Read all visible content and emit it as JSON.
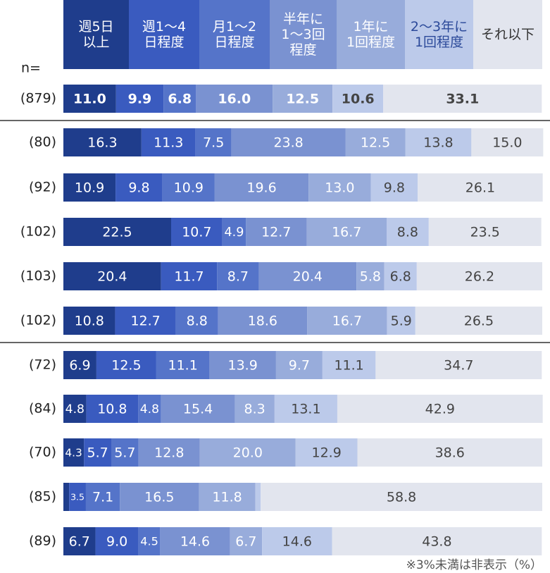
{
  "chart_data": {
    "type": "stacked_bar_horizontal",
    "n_label": "n=",
    "note": "※3%未満は非表示（%）",
    "categories": [
      "(879)",
      "(80)",
      "(92)",
      "(102)",
      "(103)",
      "(102)",
      "(72)",
      "(84)",
      "(70)",
      "(85)",
      "(89)"
    ],
    "xlim": [
      0,
      100
    ],
    "series": [
      {
        "name": "週5日\n以上",
        "color": "#1f3d8c",
        "values": [
          11.0,
          16.3,
          10.9,
          22.5,
          20.4,
          10.8,
          6.9,
          4.8,
          4.3,
          1.2,
          6.7
        ],
        "value_labels": [
          "11.0",
          "16.3",
          "10.9",
          "22.5",
          "20.4",
          "10.8",
          "6.9",
          "4.8",
          "4.3",
          null,
          "6.7"
        ]
      },
      {
        "name": "週1～4\n日程度",
        "color": "#3a5bbf",
        "values": [
          9.9,
          11.3,
          9.8,
          10.7,
          11.7,
          12.7,
          12.5,
          10.8,
          5.7,
          3.5,
          9.0
        ],
        "value_labels": [
          "9.9",
          "11.3",
          "9.8",
          "10.7",
          "11.7",
          "12.7",
          "12.5",
          "10.8",
          "5.7",
          "3.5",
          "9.0"
        ]
      },
      {
        "name": "月1～2\n日程度",
        "color": "#5574c9",
        "values": [
          6.8,
          7.5,
          10.9,
          4.9,
          8.7,
          8.8,
          11.1,
          4.8,
          5.7,
          7.1,
          4.5
        ],
        "value_labels": [
          "6.8",
          "7.5",
          "10.9",
          "4.9",
          "8.7",
          "8.8",
          "11.1",
          "4.8",
          "5.7",
          "7.1",
          "4.5"
        ]
      },
      {
        "name": "半年に\n1～3回\n程度",
        "color": "#7a92d1",
        "values": [
          16.0,
          23.8,
          19.6,
          12.7,
          20.4,
          18.6,
          13.9,
          15.4,
          12.8,
          16.5,
          14.6
        ],
        "value_labels": [
          "16.0",
          "23.8",
          "19.6",
          "12.7",
          "20.4",
          "18.6",
          "13.9",
          "15.4",
          "12.8",
          "16.5",
          "14.6"
        ]
      },
      {
        "name": "1年に\n1回程度",
        "color": "#98acdb",
        "values": [
          12.5,
          12.5,
          13.0,
          16.7,
          5.8,
          16.7,
          9.7,
          8.3,
          20.0,
          11.8,
          6.7
        ],
        "value_labels": [
          "12.5",
          "12.5",
          "13.0",
          "16.7",
          "5.8",
          "16.7",
          "9.7",
          "8.3",
          "20.0",
          "11.8",
          "6.7"
        ]
      },
      {
        "name": "2～3年に\n1回程度",
        "color": "#bccaea",
        "values": [
          10.6,
          13.8,
          9.8,
          8.8,
          6.8,
          5.9,
          11.1,
          13.1,
          12.9,
          1.1,
          14.6
        ],
        "value_labels": [
          "10.6",
          "13.8",
          "9.8",
          "8.8",
          "6.8",
          "5.9",
          "11.1",
          "13.1",
          "12.9",
          null,
          "14.6"
        ]
      },
      {
        "name": "それ以下",
        "color": "#e2e5ee",
        "values": [
          33.1,
          15.0,
          26.1,
          23.5,
          26.2,
          26.5,
          34.7,
          42.9,
          38.6,
          58.8,
          43.8
        ],
        "value_labels": [
          "33.1",
          "15.0",
          "26.1",
          "23.5",
          "26.2",
          "26.5",
          "34.7",
          "42.9",
          "38.6",
          "58.8",
          "43.8"
        ]
      }
    ]
  }
}
